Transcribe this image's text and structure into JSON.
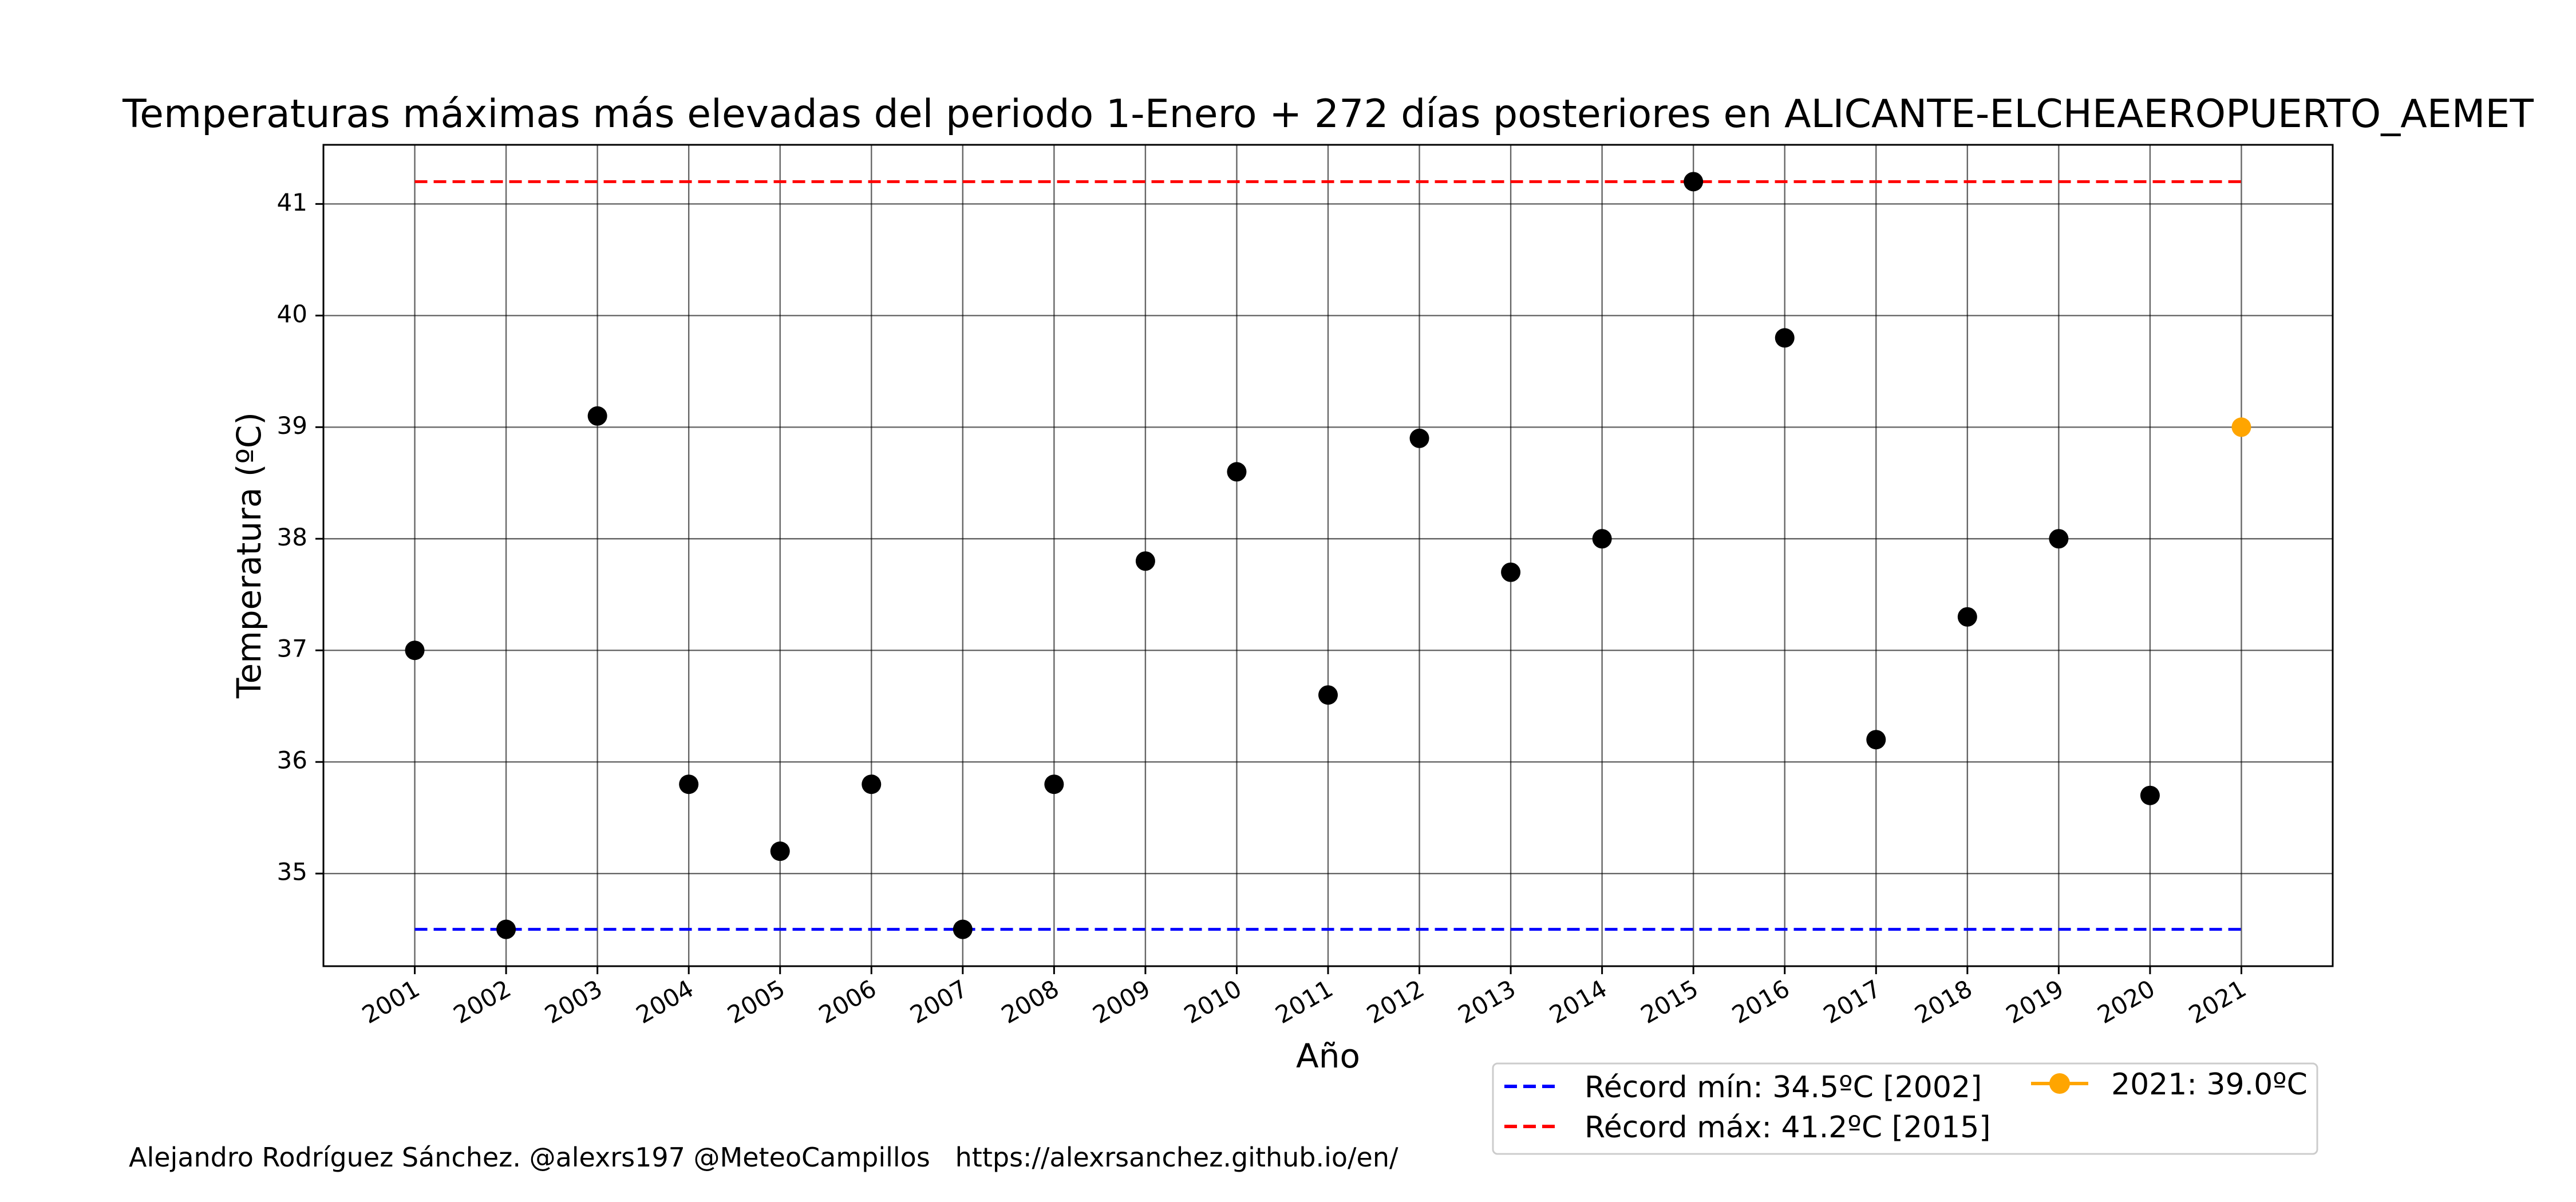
{
  "chart_data": {
    "type": "scatter",
    "title": "Temperaturas máximas más elevadas del periodo 1-Enero + 272 días posteriores en ALICANTE-ELCHEAEROPUERTO_AEMET",
    "xlabel": "Año",
    "ylabel": "Temperatura (ºC)",
    "x_ticks": [
      "2001",
      "2002",
      "2003",
      "2004",
      "2005",
      "2006",
      "2007",
      "2008",
      "2009",
      "2010",
      "2011",
      "2012",
      "2013",
      "2014",
      "2015",
      "2016",
      "2017",
      "2018",
      "2019",
      "2020",
      "2021"
    ],
    "y_ticks": [
      35,
      36,
      37,
      38,
      39,
      40,
      41
    ],
    "xlim": [
      2000,
      2022.0
    ],
    "ylim": [
      34.17,
      41.53
    ],
    "grid": true,
    "series": [
      {
        "color": "#000000",
        "x": [
          2001,
          2002,
          2003,
          2004,
          2005,
          2006,
          2007,
          2008,
          2009,
          2010,
          2011,
          2012,
          2013,
          2014,
          2015,
          2016,
          2017,
          2018,
          2019,
          2020
        ],
        "values": [
          37.0,
          34.5,
          39.1,
          35.8,
          35.2,
          35.8,
          34.5,
          35.8,
          37.8,
          38.6,
          36.6,
          38.9,
          37.7,
          38.0,
          41.2,
          39.8,
          36.2,
          37.3,
          38.0,
          35.7
        ]
      },
      {
        "name": "2021: 39.0ºC",
        "color": "#FFA500",
        "x": [
          2021
        ],
        "values": [
          39.0
        ]
      }
    ],
    "reference_lines": [
      {
        "name": "Récord mín: 34.5ºC [2002]",
        "value": 34.5,
        "x_range": [
          2001,
          2021
        ],
        "color": "#0000FF",
        "style": "dashed"
      },
      {
        "name": "Récord máx: 41.2ºC [2015]",
        "value": 41.2,
        "x_range": [
          2001,
          2021
        ],
        "color": "#FF0000",
        "style": "dashed"
      }
    ],
    "legend_placement": "lower-right, below axes"
  },
  "footer": {
    "credit": "Alejandro Rodríguez Sánchez. @alexrs197 @MeteoCampillos   https://alexrsanchez.github.io/en/"
  }
}
